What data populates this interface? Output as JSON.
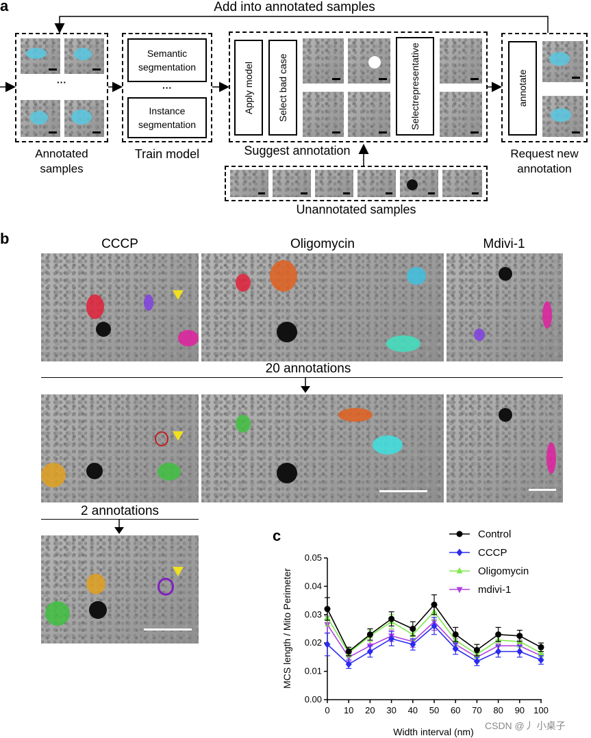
{
  "panel_a": {
    "label": "a",
    "loop_label": "Add into annotated samples",
    "ellipsis": "···",
    "annotated_samples_label_1": "Annotated",
    "annotated_samples_label_2": "samples",
    "train_model_label": "Train model",
    "semantic_seg_1": "Semantic",
    "semantic_seg_2": "segmentation",
    "instance_seg_1": "Instance",
    "instance_seg_2": "segmentation",
    "apply_model": "Apply model",
    "select_bad_case": "Select bad case",
    "select_representative_1": "Select",
    "select_representative_2": "representative",
    "suggest_annotation": "Suggest annotation",
    "unannotated_samples": "Unannotated samples",
    "annotate": "annotate",
    "request_new_1": "Request new",
    "request_new_2": "annotation"
  },
  "panel_b": {
    "label": "b",
    "col_cccp": "CCCP",
    "col_oligomycin": "Oligomycin",
    "col_mdivi": "Mdivi-1",
    "row2_label": "20 annotations",
    "row3_label": "2 annotations"
  },
  "panel_c": {
    "label": "c",
    "watermark": "CSDN @丿 小桌子"
  },
  "colors": {
    "control": "#000000",
    "cccp": "#2b2bf0",
    "oligomycin": "#7de84a",
    "mdivi": "#b040e0"
  },
  "chart_data": {
    "type": "line",
    "title": "",
    "xlabel": "Width interval (nm)",
    "ylabel": "MCS length / Mito Perimeter",
    "x": [
      0,
      10,
      20,
      30,
      40,
      50,
      60,
      70,
      80,
      90,
      100
    ],
    "x_ticks": [
      "0",
      "10",
      "20",
      "30",
      "40",
      "50",
      "60",
      "70",
      "80",
      "90",
      "100"
    ],
    "y_ticks": [
      "0.00",
      "0.01",
      "0.02",
      "0.03",
      "0.04",
      "0.05"
    ],
    "xlim": [
      0,
      100
    ],
    "ylim": [
      0,
      0.05
    ],
    "legend_position": "top-right",
    "series": [
      {
        "name": "Control",
        "marker": "circle",
        "color": "#000000",
        "values": [
          0.032,
          0.017,
          0.023,
          0.0285,
          0.025,
          0.0335,
          0.023,
          0.0175,
          0.023,
          0.0225,
          0.0185
        ],
        "errors": [
          0.004,
          0.0015,
          0.002,
          0.0025,
          0.0025,
          0.0035,
          0.0025,
          0.002,
          0.0025,
          0.002,
          0.0015
        ]
      },
      {
        "name": "CCCP",
        "marker": "diamond",
        "color": "#2b2bf0",
        "values": [
          0.0195,
          0.0125,
          0.017,
          0.0215,
          0.0195,
          0.026,
          0.018,
          0.0135,
          0.017,
          0.017,
          0.014
        ],
        "errors": [
          0.004,
          0.0015,
          0.002,
          0.0025,
          0.002,
          0.003,
          0.002,
          0.0015,
          0.002,
          0.002,
          0.0015
        ]
      },
      {
        "name": "Oligomycin",
        "marker": "triangle-up",
        "color": "#7de84a",
        "values": [
          0.029,
          0.0165,
          0.0225,
          0.0275,
          0.023,
          0.031,
          0.021,
          0.016,
          0.021,
          0.0205,
          0.0165
        ],
        "errors": [
          0.003,
          0.0015,
          0.002,
          0.0025,
          0.002,
          0.003,
          0.002,
          0.0015,
          0.002,
          0.002,
          0.0015
        ]
      },
      {
        "name": "mdivi-1",
        "marker": "triangle-down",
        "color": "#b040e0",
        "values": [
          0.0265,
          0.015,
          0.019,
          0.0225,
          0.0205,
          0.0275,
          0.0195,
          0.015,
          0.019,
          0.019,
          0.0155
        ],
        "errors": [
          0.003,
          0.0015,
          0.002,
          0.002,
          0.002,
          0.003,
          0.002,
          0.0015,
          0.002,
          0.002,
          0.0015
        ]
      }
    ]
  }
}
